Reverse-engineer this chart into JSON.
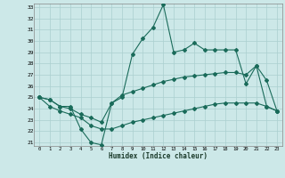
{
  "xlabel": "Humidex (Indice chaleur)",
  "bg_color": "#cce8e8",
  "grid_color": "#aacfcf",
  "line_color": "#1a6b5a",
  "y_min": 21,
  "y_max": 33,
  "line1_y": [
    25.0,
    24.8,
    24.2,
    24.2,
    22.2,
    21.0,
    20.8,
    24.5,
    25.0,
    28.8,
    30.2,
    31.2,
    33.2,
    29.0,
    29.2,
    29.8,
    29.2,
    29.2,
    29.2,
    29.2,
    26.2,
    27.8,
    24.2,
    23.8
  ],
  "line2_y": [
    25.0,
    24.8,
    24.2,
    24.0,
    23.5,
    23.2,
    22.8,
    24.5,
    25.2,
    25.5,
    25.8,
    26.1,
    26.4,
    26.6,
    26.8,
    26.9,
    27.0,
    27.1,
    27.2,
    27.2,
    27.0,
    27.8,
    26.5,
    23.8
  ],
  "line3_y": [
    25.0,
    24.2,
    23.8,
    23.5,
    23.2,
    22.5,
    22.2,
    22.2,
    22.5,
    22.8,
    23.0,
    23.2,
    23.4,
    23.6,
    23.8,
    24.0,
    24.2,
    24.4,
    24.5,
    24.5,
    24.5,
    24.5,
    24.2,
    23.8
  ]
}
